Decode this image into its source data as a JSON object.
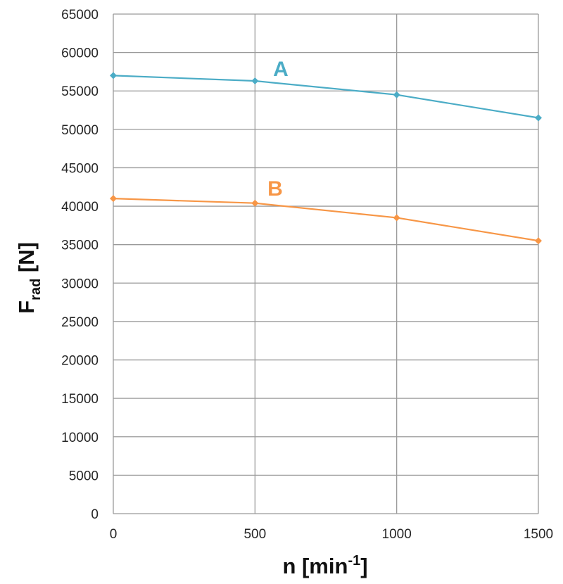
{
  "chart_data": {
    "type": "line",
    "x": [
      0,
      500,
      1000,
      1500
    ],
    "x_tick_labels": [
      "0",
      "500",
      "1000",
      "1500"
    ],
    "y_tick_labels": [
      "0",
      "5000",
      "10000",
      "15000",
      "20000",
      "25000",
      "30000",
      "35000",
      "40000",
      "45000",
      "50000",
      "55000",
      "60000",
      "65000"
    ],
    "xlim": [
      0,
      1500
    ],
    "ylim": [
      0,
      65000
    ],
    "xlabel": {
      "main": "n [min",
      "superscript": "-1",
      "suffix": "]"
    },
    "ylabel": {
      "main": "F",
      "subscript": "rad",
      "suffix": " [N]"
    },
    "grid": true,
    "series": [
      {
        "name": "A",
        "values": [
          57000,
          56300,
          54500,
          51500
        ],
        "color": "#4bacc6",
        "marker": "diamond"
      },
      {
        "name": "B",
        "values": [
          41000,
          40400,
          38500,
          35500
        ],
        "color": "#f79646",
        "marker": "diamond"
      }
    ]
  }
}
